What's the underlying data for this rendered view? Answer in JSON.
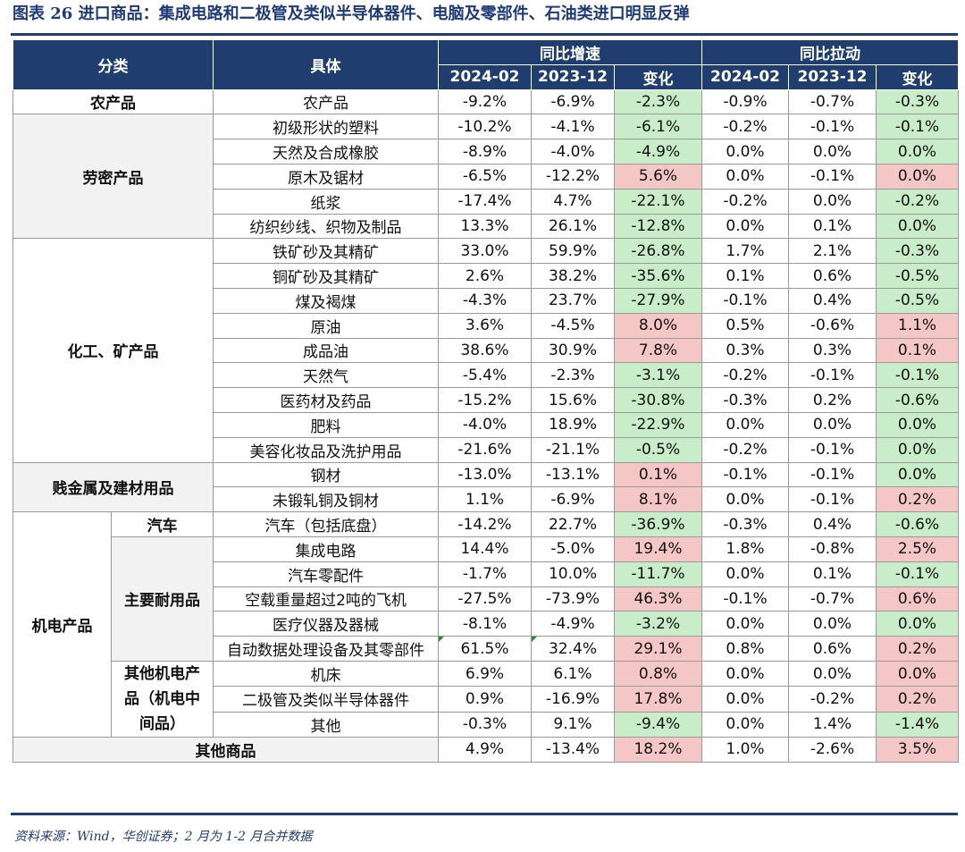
{
  "title": "图表 26   进口商品：集成电路和二极管及类似半导体器件、电脑及零部件、石油类进口明显反弹",
  "header": {
    "category": "分类",
    "detail": "具体",
    "yoy_growth": "同比增速",
    "yoy_pull": "同比拉动",
    "col_2024_02": "2024-02",
    "col_2023_12": "2023-12",
    "col_change": "变化"
  },
  "groups": {
    "agri": "农产品",
    "labor": "劳密产品",
    "chem": "化工、矿产品",
    "metal": "贱金属及建材用品",
    "mech": "机电产品",
    "auto": "汽车",
    "durable": "主要耐用品",
    "other_mech": "其他机电产品（机电中间品）",
    "other_goods": "其他商品"
  },
  "rows": [
    {
      "item": "农产品",
      "g24": "-9.2%",
      "g23": "-6.9%",
      "gc": "-2.3%",
      "p24": "-0.9%",
      "p23": "-0.7%",
      "pc": "-0.3%"
    },
    {
      "item": "初级形状的塑料",
      "g24": "-10.2%",
      "g23": "-4.1%",
      "gc": "-6.1%",
      "p24": "-0.2%",
      "p23": "-0.1%",
      "pc": "-0.1%"
    },
    {
      "item": "天然及合成橡胶",
      "g24": "-8.9%",
      "g23": "-4.0%",
      "gc": "-4.9%",
      "p24": "0.0%",
      "p23": "0.0%",
      "pc": "0.0%"
    },
    {
      "item": "原木及锯材",
      "g24": "-6.5%",
      "g23": "-12.2%",
      "gc": "5.6%",
      "p24": "0.0%",
      "p23": "-0.1%",
      "pc": "0.0%"
    },
    {
      "item": "纸浆",
      "g24": "-17.4%",
      "g23": "4.7%",
      "gc": "-22.1%",
      "p24": "-0.2%",
      "p23": "0.0%",
      "pc": "-0.2%"
    },
    {
      "item": "纺织纱线、织物及制品",
      "g24": "13.3%",
      "g23": "26.1%",
      "gc": "-12.8%",
      "p24": "0.0%",
      "p23": "0.1%",
      "pc": "0.0%"
    },
    {
      "item": "铁矿砂及其精矿",
      "g24": "33.0%",
      "g23": "59.9%",
      "gc": "-26.8%",
      "p24": "1.7%",
      "p23": "2.1%",
      "pc": "-0.3%"
    },
    {
      "item": "铜矿砂及其精矿",
      "g24": "2.6%",
      "g23": "38.2%",
      "gc": "-35.6%",
      "p24": "0.1%",
      "p23": "0.6%",
      "pc": "-0.5%"
    },
    {
      "item": "煤及褐煤",
      "g24": "-4.3%",
      "g23": "23.7%",
      "gc": "-27.9%",
      "p24": "-0.1%",
      "p23": "0.4%",
      "pc": "-0.5%"
    },
    {
      "item": "原油",
      "g24": "3.6%",
      "g23": "-4.5%",
      "gc": "8.0%",
      "p24": "0.5%",
      "p23": "-0.6%",
      "pc": "1.1%"
    },
    {
      "item": "成品油",
      "g24": "38.6%",
      "g23": "30.9%",
      "gc": "7.8%",
      "p24": "0.3%",
      "p23": "0.3%",
      "pc": "0.1%"
    },
    {
      "item": "天然气",
      "g24": "-5.4%",
      "g23": "-2.3%",
      "gc": "-3.1%",
      "p24": "-0.2%",
      "p23": "-0.1%",
      "pc": "-0.1%"
    },
    {
      "item": "医药材及药品",
      "g24": "-15.2%",
      "g23": "15.6%",
      "gc": "-30.8%",
      "p24": "-0.3%",
      "p23": "0.2%",
      "pc": "-0.6%"
    },
    {
      "item": "肥料",
      "g24": "-4.0%",
      "g23": "18.9%",
      "gc": "-22.9%",
      "p24": "0.0%",
      "p23": "0.0%",
      "pc": "0.0%"
    },
    {
      "item": "美容化妆品及洗护用品",
      "g24": "-21.6%",
      "g23": "-21.1%",
      "gc": "-0.5%",
      "p24": "-0.2%",
      "p23": "-0.1%",
      "pc": "0.0%"
    },
    {
      "item": "钢材",
      "g24": "-13.0%",
      "g23": "-13.1%",
      "gc": "0.1%",
      "p24": "-0.1%",
      "p23": "-0.1%",
      "pc": "0.0%"
    },
    {
      "item": "未锻轧铜及铜材",
      "g24": "1.1%",
      "g23": "-6.9%",
      "gc": "8.1%",
      "p24": "0.0%",
      "p23": "-0.1%",
      "pc": "0.2%"
    },
    {
      "item": "汽车（包括底盘）",
      "g24": "-14.2%",
      "g23": "22.7%",
      "gc": "-36.9%",
      "p24": "-0.3%",
      "p23": "0.4%",
      "pc": "-0.6%"
    },
    {
      "item": "集成电路",
      "g24": "14.4%",
      "g23": "-5.0%",
      "gc": "19.4%",
      "p24": "1.8%",
      "p23": "-0.8%",
      "pc": "2.5%"
    },
    {
      "item": "汽车零配件",
      "g24": "-1.7%",
      "g23": "10.0%",
      "gc": "-11.7%",
      "p24": "0.0%",
      "p23": "0.1%",
      "pc": "-0.1%"
    },
    {
      "item": "空载重量超过2吨的飞机",
      "g24": "-27.5%",
      "g23": "-73.9%",
      "gc": "46.3%",
      "p24": "-0.1%",
      "p23": "-0.7%",
      "pc": "0.6%"
    },
    {
      "item": "医疗仪器及器械",
      "g24": "-8.1%",
      "g23": "-4.9%",
      "gc": "-3.2%",
      "p24": "0.0%",
      "p23": "0.0%",
      "pc": "0.0%"
    },
    {
      "item": "自动数据处理设备及其零部件",
      "g24": "61.5%",
      "g23": "32.4%",
      "gc": "29.1%",
      "p24": "0.8%",
      "p23": "0.6%",
      "pc": "0.2%"
    },
    {
      "item": "机床",
      "g24": "6.9%",
      "g23": "6.1%",
      "gc": "0.8%",
      "p24": "0.0%",
      "p23": "0.0%",
      "pc": "0.0%"
    },
    {
      "item": "二极管及类似半导体器件",
      "g24": "0.9%",
      "g23": "-16.9%",
      "gc": "17.8%",
      "p24": "0.0%",
      "p23": "-0.2%",
      "pc": "0.2%"
    },
    {
      "item": "其他",
      "g24": "-0.3%",
      "g23": "9.1%",
      "gc": "-9.4%",
      "p24": "0.0%",
      "p23": "1.4%",
      "pc": "-1.4%"
    },
    {
      "item": "",
      "g24": "4.9%",
      "g23": "-13.4%",
      "gc": "18.2%",
      "p24": "1.0%",
      "p23": "-2.6%",
      "pc": "3.5%"
    }
  ],
  "source": "资料来源：Wind，华创证券；2 月为 1-2 月合并数据"
}
